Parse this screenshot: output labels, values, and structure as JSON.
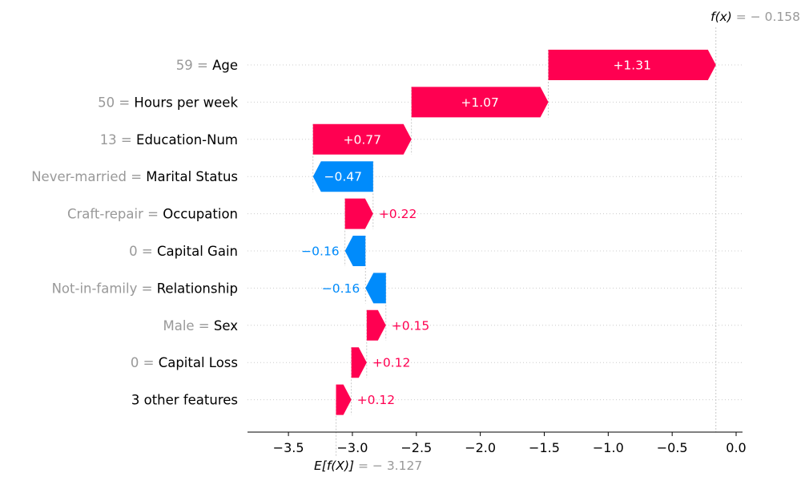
{
  "chart_data": {
    "type": "waterfall",
    "features": [
      {
        "value_text": "59",
        "name": "Age",
        "contribution": 1.31,
        "label": "+1.31"
      },
      {
        "value_text": "50",
        "name": "Hours per week",
        "contribution": 1.07,
        "label": "+1.07"
      },
      {
        "value_text": "13",
        "name": "Education-Num",
        "contribution": 0.77,
        "label": "+0.77"
      },
      {
        "value_text": "Never-married",
        "name": "Marital Status",
        "contribution": -0.47,
        "label": "−0.47"
      },
      {
        "value_text": "Craft-repair",
        "name": "Occupation",
        "contribution": 0.22,
        "label": "+0.22"
      },
      {
        "value_text": "0",
        "name": "Capital Gain",
        "contribution": -0.16,
        "label": "−0.16"
      },
      {
        "value_text": "Not-in-family",
        "name": "Relationship",
        "contribution": -0.16,
        "label": "−0.16"
      },
      {
        "value_text": "Male",
        "name": "Sex",
        "contribution": 0.15,
        "label": "+0.15"
      },
      {
        "value_text": "0",
        "name": "Capital Loss",
        "contribution": 0.12,
        "label": "+0.12"
      },
      {
        "value_text": "",
        "name": "3 other features",
        "contribution": 0.12,
        "label": "+0.12"
      }
    ],
    "fx": {
      "prefix": "f(x)",
      "text": " = − 0.158",
      "value": -0.158
    },
    "efx": {
      "prefix": "E[f(X)]",
      "text": " = − 3.127",
      "value": -3.127
    },
    "x_ticks": [
      -3.5,
      -3.0,
      -2.5,
      -2.0,
      -1.5,
      -1.0,
      -0.5,
      0.0
    ],
    "x_tick_labels": [
      "−3.5",
      "−3.0",
      "−2.5",
      "−2.0",
      "−1.5",
      "−1.0",
      "−0.5",
      "0.0"
    ],
    "xlim": [
      -3.82,
      0.05
    ],
    "colors": {
      "positive": "#ff0051",
      "negative": "#008bfb",
      "label_gray": "#999999",
      "text": "#000000"
    }
  }
}
